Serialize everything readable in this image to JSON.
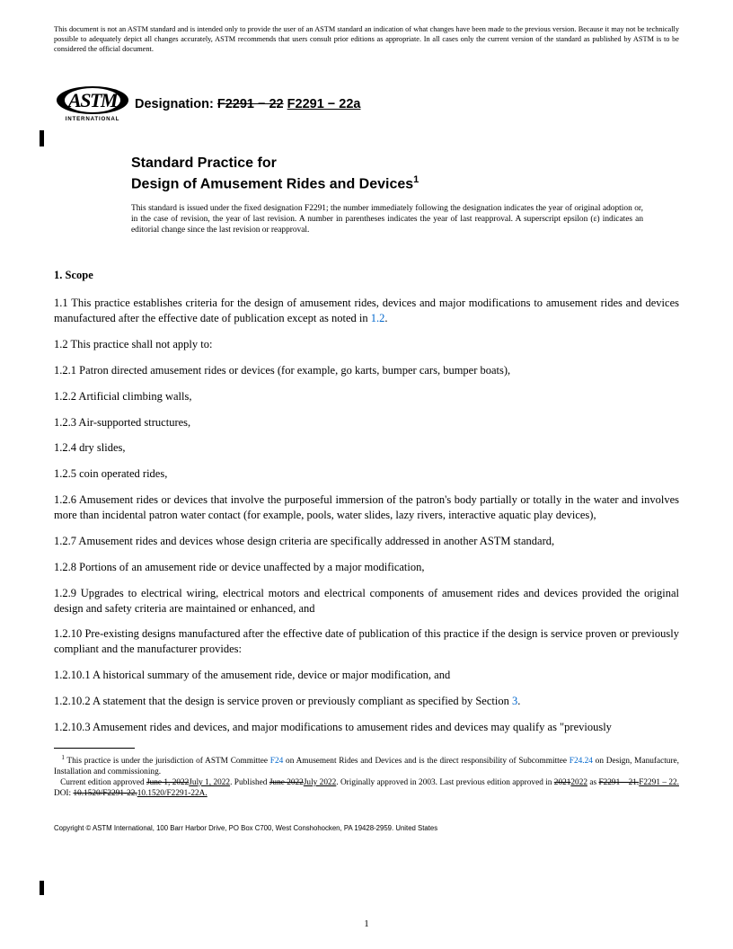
{
  "disclaimer": "This document is not an ASTM standard and is intended only to provide the user of an ASTM standard an indication of what changes have been made to the previous version. Because it may not be technically possible to adequately depict all changes accurately, ASTM recommends that users consult prior editions as appropriate. In all cases only the current version of the standard as published by ASTM is to be considered the official document.",
  "logo": {
    "text": "ASTM",
    "sub": "INTERNATIONAL"
  },
  "designation": {
    "label": "Designation:",
    "old": "F2291 − 22",
    "new": "F2291 − 22a"
  },
  "title": {
    "line1": "Standard Practice for",
    "line2": "Design of Amusement Rides and Devices",
    "super": "1"
  },
  "issue_note": "This standard is issued under the fixed designation F2291; the number immediately following the designation indicates the year of original adoption or, in the case of revision, the year of last revision. A number in parentheses indicates the year of last reapproval. A superscript epsilon (ε) indicates an editorial change since the last revision or reapproval.",
  "sections": {
    "scope_head": "1.  Scope",
    "p1_1a": "1.1  This practice establishes criteria for the design of amusement rides, devices and major modifications to amusement rides and devices manufactured after the effective date of publication except as noted in ",
    "p1_1link": "1.2",
    "p1_1b": ".",
    "p1_2": "1.2  This practice shall not apply to:",
    "p1_2_1": "1.2.1  Patron directed amusement rides or devices (for example, go karts, bumper cars, bumper boats),",
    "p1_2_2": "1.2.2  Artificial climbing walls,",
    "p1_2_3": "1.2.3  Air-supported structures,",
    "p1_2_4": "1.2.4  dry slides,",
    "p1_2_5": "1.2.5  coin operated rides,",
    "p1_2_6": "1.2.6  Amusement rides or devices that involve the purposeful immersion of the patron's body partially or totally in the water and involves more than incidental patron water contact (for example, pools, water slides, lazy rivers, interactive aquatic play devices),",
    "p1_2_7": "1.2.7  Amusement rides and devices whose design criteria are specifically addressed in another ASTM standard,",
    "p1_2_8": "1.2.8  Portions of an amusement ride or device unaffected by a major modification,",
    "p1_2_9": "1.2.9  Upgrades to electrical wiring, electrical motors and electrical components of amusement rides and devices provided the original design and safety criteria are maintained or enhanced, and",
    "p1_2_10": "1.2.10  Pre-existing designs manufactured after the effective date of publication of this practice if the design is service proven or previously compliant and the manufacturer provides:",
    "p1_2_10_1": "1.2.10.1  A historical summary of the amusement ride, device or major modification, and",
    "p1_2_10_2a": "1.2.10.2  A statement that the design is service proven or previously compliant as specified by Section ",
    "p1_2_10_2link": "3",
    "p1_2_10_2b": ".",
    "p1_2_10_3": "1.2.10.3  Amusement rides and devices, and major modifications to amusement rides and devices may qualify as \"previously"
  },
  "footnote": {
    "fn1a": " This practice is under the jurisdiction of ASTM Committee ",
    "fn1link1": "F24",
    "fn1b": " on Amusement Rides and Devices and is the direct responsibility of Subcommittee ",
    "fn1link2": "F24.24",
    "fn1c": " on Design, Manufacture, Installation and commissioning.",
    "fn2a": "Current edition approved ",
    "fn2old1": "June 1, 2022",
    "fn2new1": "July 1, 2022",
    "fn2b": ". Published ",
    "fn2old2": "June 2022",
    "fn2new2": "July 2022",
    "fn2c": ". Originally approved in 2003. Last previous edition approved in ",
    "fn2old3": "2021",
    "fn2new3": "2022",
    "fn2d": " as ",
    "fn2old4": "F2291 – 21.",
    "fn2new4": "F2291 – 22.",
    "fn2e": " DOI: ",
    "fn2old5": "10.1520/F2291-22.",
    "fn2new5": "10.1520/F2291-22A."
  },
  "copyright": "Copyright © ASTM International, 100 Barr Harbor Drive, PO Box C700, West Conshohocken, PA 19428-2959. United States",
  "pagenum": "1",
  "colors": {
    "link": "#0066cc",
    "text": "#000000"
  }
}
